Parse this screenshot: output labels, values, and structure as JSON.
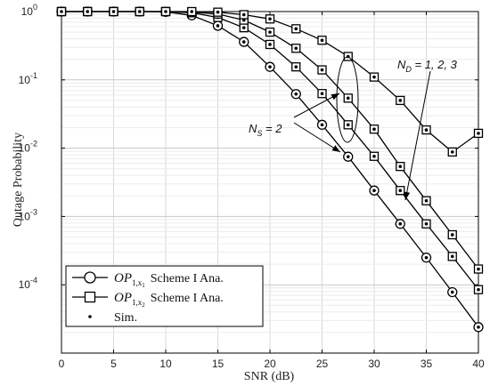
{
  "chart_data": {
    "type": "line",
    "xlabel": "SNR (dB)",
    "ylabel": "Outage Probability",
    "xlim": [
      0,
      40
    ],
    "ylim": [
      1e-05,
      1
    ],
    "y_scale": "log",
    "grid": true,
    "x_ticks": [
      0,
      5,
      10,
      15,
      20,
      25,
      30,
      35,
      40
    ],
    "y_ticks": [
      {
        "value": 1,
        "label": "10^0"
      },
      {
        "value": 0.1,
        "label": "10^-1"
      },
      {
        "value": 0.01,
        "label": "10^-2"
      },
      {
        "value": 0.001,
        "label": "10^-3"
      },
      {
        "value": 0.0001,
        "label": "10^-4"
      }
    ],
    "x": [
      0,
      2.5,
      5,
      7.5,
      10,
      12.5,
      15,
      17.5,
      20,
      22.5,
      25,
      27.5,
      30,
      32.5,
      35,
      37.5,
      40
    ],
    "series": [
      {
        "marker": "circle",
        "values": [
          1,
          1,
          1,
          1,
          0.99,
          0.88,
          0.62,
          0.36,
          0.155,
          0.062,
          0.022,
          0.0075,
          0.0024,
          0.00078,
          0.00025,
          7.8e-05,
          2.4e-05
        ]
      },
      {
        "marker": "square",
        "values": [
          1,
          1,
          1,
          1,
          1,
          0.96,
          0.82,
          0.58,
          0.33,
          0.155,
          0.063,
          0.022,
          0.0076,
          0.0024,
          0.00078,
          0.00026,
          8.5e-05
        ]
      },
      {
        "marker": "square",
        "values": [
          1,
          1,
          1,
          1,
          1,
          0.98,
          0.92,
          0.75,
          0.5,
          0.29,
          0.14,
          0.054,
          0.019,
          0.0054,
          0.0017,
          0.00054,
          0.00017
        ]
      },
      {
        "marker": "square",
        "values": [
          1,
          1,
          1,
          1,
          1,
          1,
          0.98,
          0.9,
          0.78,
          0.56,
          0.38,
          0.22,
          0.11,
          0.05,
          0.0185,
          0.0088,
          0.0165
        ]
      }
    ],
    "legend": {
      "placement": "bottom-left",
      "entries": [
        {
          "marker": "circle-line",
          "math": "OP",
          "sub": "1,x",
          "subsub": "1",
          "text": "Scheme I Ana."
        },
        {
          "marker": "square-line",
          "math": "OP",
          "sub": "1,x",
          "subsub": "2",
          "text": "Scheme I Ana."
        },
        {
          "marker": "dot",
          "text": "Sim."
        }
      ]
    },
    "annotations": {
      "nd": {
        "base": "N",
        "sub": "D",
        "rest": " = 1, 2, 3"
      },
      "ns": {
        "base": "N",
        "sub": "S",
        "rest": " = 2"
      }
    },
    "colors": {
      "line": "#000000",
      "grid": "#d9d9d9",
      "axis": "#000000"
    }
  }
}
